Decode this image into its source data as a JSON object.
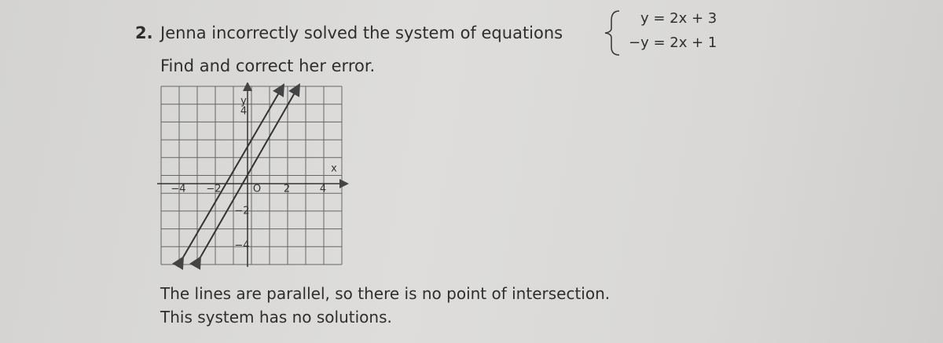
{
  "problem": {
    "number": "2.",
    "prompt": "Jenna incorrectly solved the system of equations",
    "equations": [
      "y = 2x + 3",
      "−y = 2x + 1"
    ],
    "instruction": "Find and correct her error."
  },
  "graph": {
    "y_axis_label": "y",
    "x_axis_label": "x",
    "x_labels": [
      "−4",
      "−2",
      "O",
      "2",
      "4"
    ],
    "y_labels": [
      "4",
      "−2",
      "−4"
    ]
  },
  "work": {
    "lines": [
      "The lines are parallel, so there is no point of intersection.",
      "This system has no solutions."
    ]
  }
}
